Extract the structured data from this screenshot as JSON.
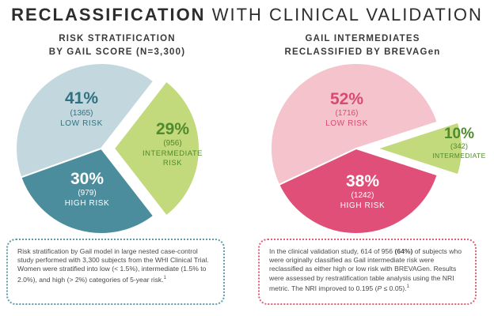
{
  "header": {
    "title_bold": "RECLASSIFICATION",
    "title_light": " WITH CLINICAL VALIDATION"
  },
  "colors": {
    "low_risk_left": "#c3d8de",
    "intermediate": "#c2d97c",
    "high_risk_left": "#4b8d9c",
    "low_risk_right": "#f4c3cc",
    "high_risk_right": "#df4f77",
    "teal_text": "#2f7181",
    "pink_text": "#d84b70",
    "green_text": "#4f8a2c"
  },
  "chart_data": [
    {
      "type": "pie",
      "title_line1": "RISK STRATIFICATION",
      "title_line2": "BY GAIL SCORE (N=3,300)",
      "slices": [
        {
          "name": "low",
          "percent_label": "41%",
          "count_label": "(1365)",
          "label": "LOW RISK",
          "label2": "",
          "value": 41,
          "count": 1365
        },
        {
          "name": "intermediate",
          "percent_label": "29%",
          "count_label": "(956)",
          "label": "INTERMEDIATE",
          "label2": "RISK",
          "value": 29,
          "count": 956
        },
        {
          "name": "high",
          "percent_label": "30%",
          "count_label": "(979)",
          "label": "HIGH RISK",
          "label2": "",
          "value": 30,
          "count": 979
        }
      ]
    },
    {
      "type": "pie",
      "title_line1": "GAIL INTERMEDIATES",
      "title_line2": "RECLASSIFIED BY BREVAGen",
      "slices": [
        {
          "name": "low",
          "percent_label": "52%",
          "count_label": "(1716)",
          "label": "LOW RISK",
          "label2": "",
          "value": 52,
          "count": 1716
        },
        {
          "name": "intermediate",
          "percent_label": "10%",
          "count_label": "(342)",
          "label": "INTERMEDIATE",
          "label2": "",
          "value": 10,
          "count": 342
        },
        {
          "name": "high",
          "percent_label": "38%",
          "count_label": "(1242)",
          "label": "HIGH RISK",
          "label2": "",
          "value": 38,
          "count": 1242
        }
      ]
    }
  ],
  "notes": {
    "left": "Risk stratification by Gail model in large nested case-control study performed with 3,300 subjects from the WHI Clinical Trial. Women were stratified into low (< 1.5%), intermediate (1.5% to 2.0%), and high (> 2%) categories of 5-year risk.",
    "left_ref": "1",
    "right_a": "In the clinical validation study, 614 of 956 ",
    "right_bold": "(64%)",
    "right_b": " of subjects who were originally classified as Gail intermediate risk were reclassified as either high or low risk with BREVAGen. Results were assessed by restratification table analysis using the NRI metric. The NRI improved to 0.195 (",
    "right_p": "P",
    "right_c": " ≤ 0.05).",
    "right_ref": "1"
  }
}
